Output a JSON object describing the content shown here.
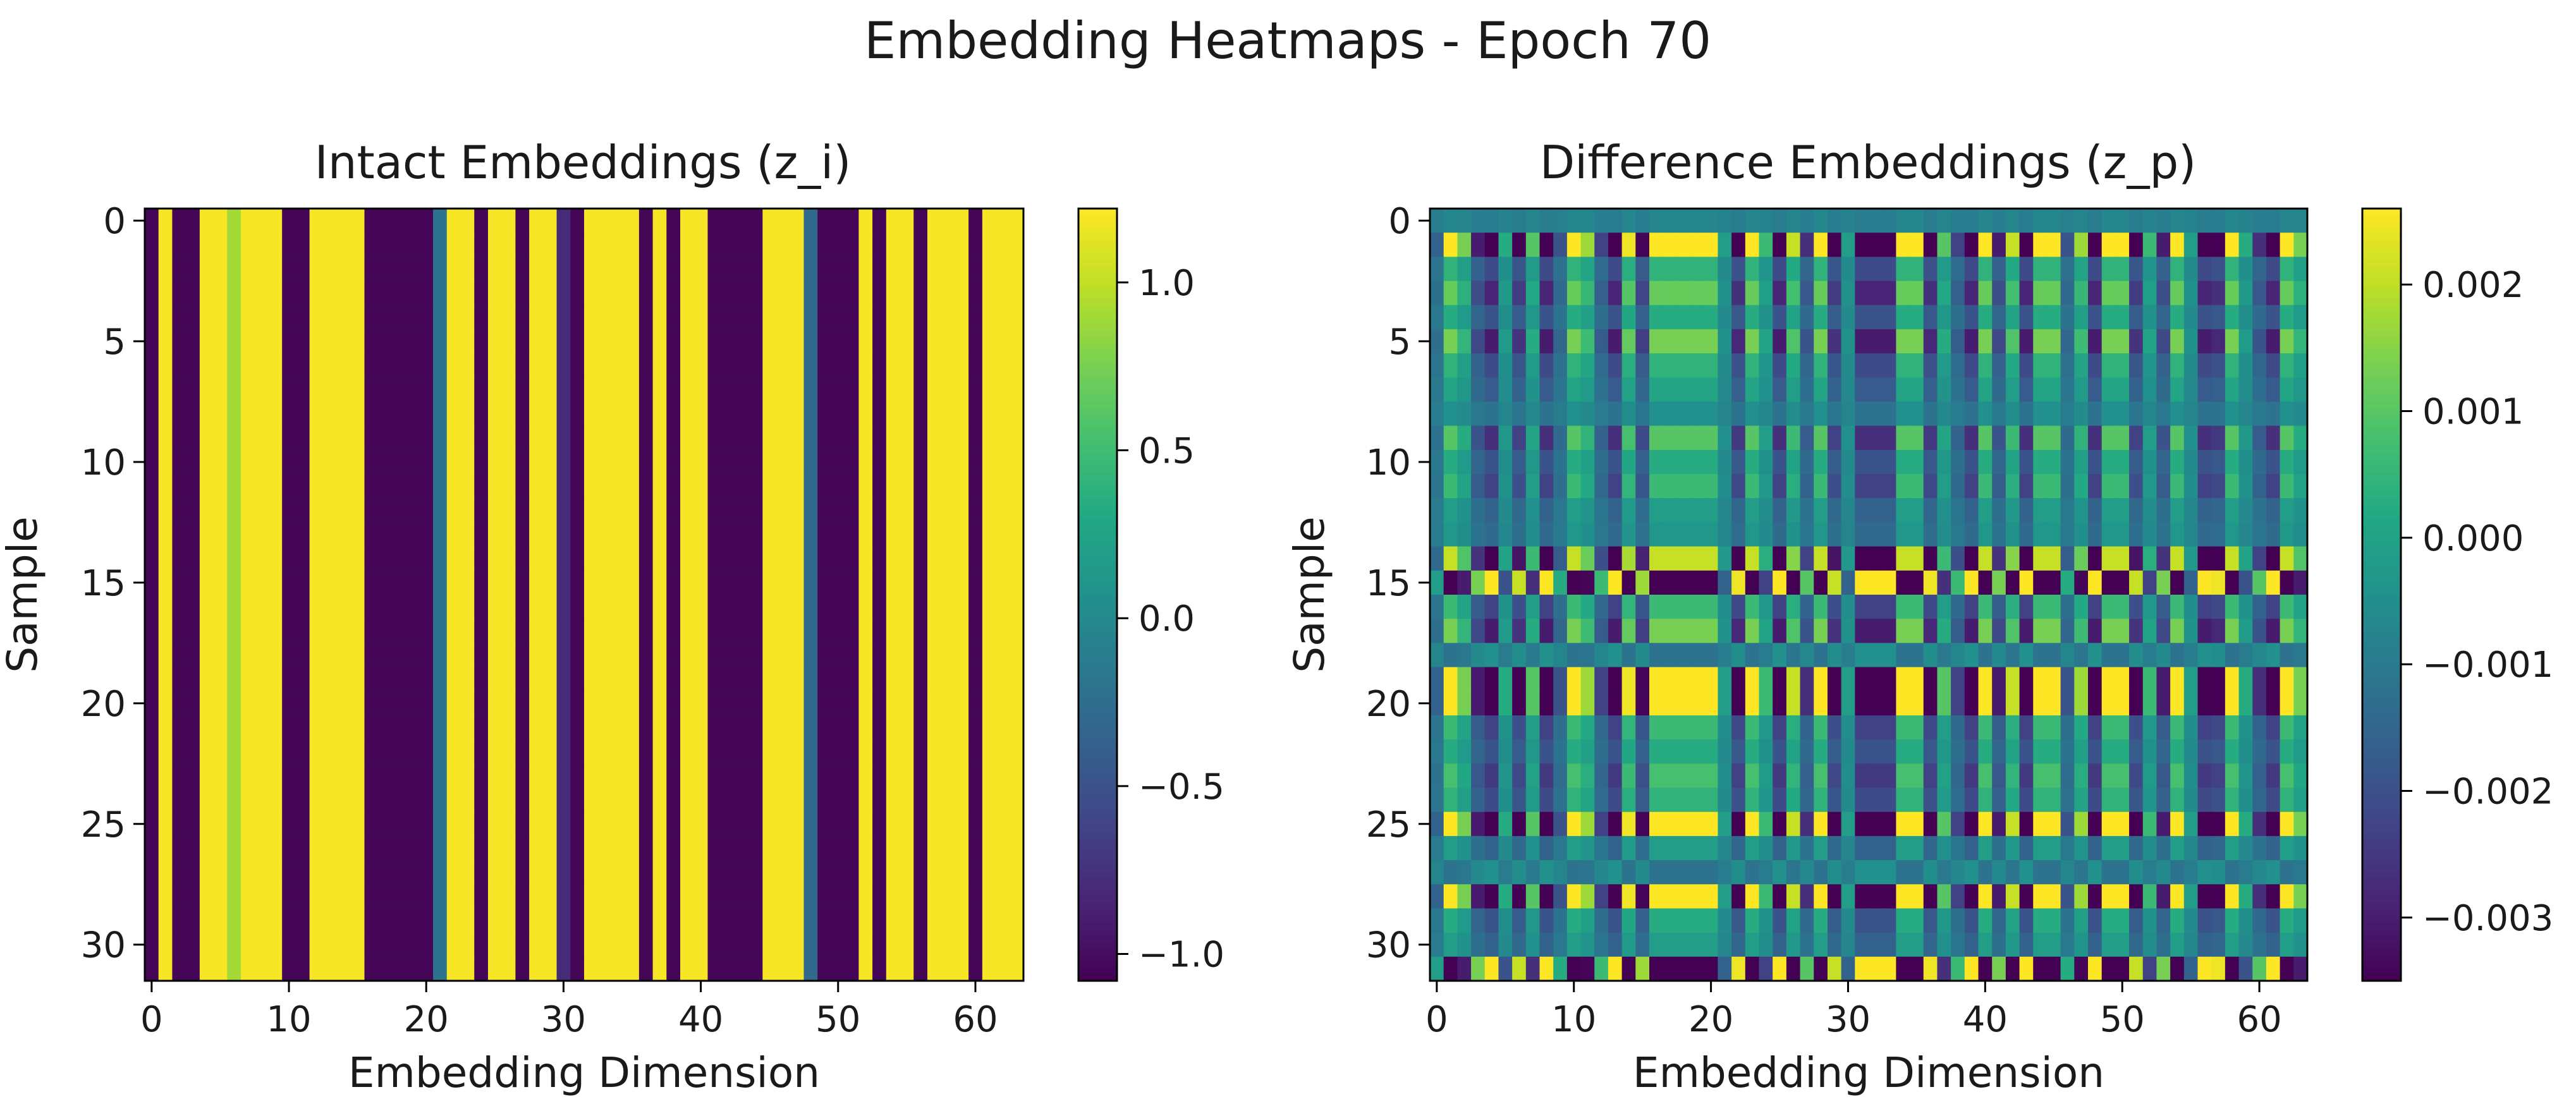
{
  "suptitle": "Embedding Heatmaps - Epoch 70",
  "colormap": "viridis",
  "chart_data": [
    {
      "type": "heatmap",
      "title": "Intact Embeddings (z_i)",
      "xlabel": "Embedding Dimension",
      "ylabel": "Sample",
      "rows": 32,
      "cols": 64,
      "xticks": [
        0,
        10,
        20,
        30,
        40,
        50,
        60
      ],
      "yticks": [
        0,
        5,
        10,
        15,
        20,
        25,
        30
      ],
      "vmin": -1.08,
      "vmax": 1.22,
      "colorbar_ticks": [
        1.0,
        0.5,
        0.0,
        -0.5,
        -1.0
      ],
      "colorbar_tick_labels": [
        "1.0",
        "0.5",
        "0.0",
        "−0.5",
        "−1.0"
      ],
      "column_values": [
        -1.05,
        1.2,
        -1.05,
        -1.05,
        1.2,
        1.2,
        0.9,
        1.2,
        1.2,
        1.2,
        -1.05,
        -1.05,
        1.2,
        1.2,
        1.2,
        1.2,
        -1.05,
        -1.05,
        -1.05,
        -1.05,
        -1.05,
        -0.2,
        1.2,
        1.2,
        -1.05,
        1.2,
        1.2,
        -1.05,
        1.2,
        1.2,
        -0.8,
        -1.05,
        1.2,
        1.2,
        1.2,
        1.2,
        -1.05,
        1.2,
        -1.05,
        1.2,
        1.2,
        -1.05,
        -1.05,
        -1.05,
        -1.05,
        1.2,
        1.2,
        1.2,
        -0.3,
        -1.05,
        -1.05,
        -1.05,
        1.2,
        -1.05,
        1.2,
        1.2,
        -1.05,
        1.2,
        1.2,
        1.2,
        -1.05,
        1.2,
        1.2,
        1.2
      ]
    },
    {
      "type": "heatmap",
      "title": "Difference Embeddings (z_p)",
      "xlabel": "Embedding Dimension",
      "ylabel": "Sample",
      "rows": 32,
      "cols": 64,
      "xticks": [
        0,
        10,
        20,
        30,
        40,
        50,
        60
      ],
      "yticks": [
        0,
        5,
        10,
        15,
        20,
        25,
        30
      ],
      "vmin": -0.0035,
      "vmax": 0.0026,
      "colorbar_ticks": [
        0.002,
        0.001,
        0.0,
        -0.001,
        -0.002,
        -0.003
      ],
      "colorbar_tick_labels": [
        "0.002",
        "0.001",
        "0.000",
        "−0.001",
        "−0.002",
        "−0.003"
      ],
      "column_pattern": [
        -0.2,
        1,
        0.6,
        -0.6,
        -1,
        0.3,
        -0.8,
        0.5,
        -1,
        -0.3,
        1,
        0.7,
        -0.4,
        -1,
        0.9,
        -0.7,
        1,
        1,
        1,
        1,
        1,
        0.2,
        -0.9,
        1,
        0.4,
        -1,
        0.8,
        -0.5,
        1,
        -0.8,
        0.2,
        -1,
        -1,
        -1,
        1,
        1,
        -0.9,
        0.5,
        -0.4,
        -1,
        1,
        -0.6,
        0.8,
        -1,
        1,
        1,
        -0.3,
        0.7,
        -1,
        1,
        1,
        -0.8,
        0.4,
        -0.6,
        1,
        0.2,
        -1,
        -0.9,
        1,
        0.3,
        -0.5,
        -1,
        1,
        0.6
      ],
      "row_scales": [
        0.04,
        1,
        0.35,
        0.55,
        0.3,
        0.6,
        0.35,
        0.25,
        0.1,
        0.5,
        0.3,
        0.4,
        0.2,
        0.15,
        0.8,
        -1,
        0.4,
        0.6,
        -0.1,
        1,
        1,
        0.4,
        0.3,
        0.45,
        0.35,
        1,
        0.2,
        -0.1,
        1,
        0.3,
        0.2,
        -1
      ]
    }
  ]
}
